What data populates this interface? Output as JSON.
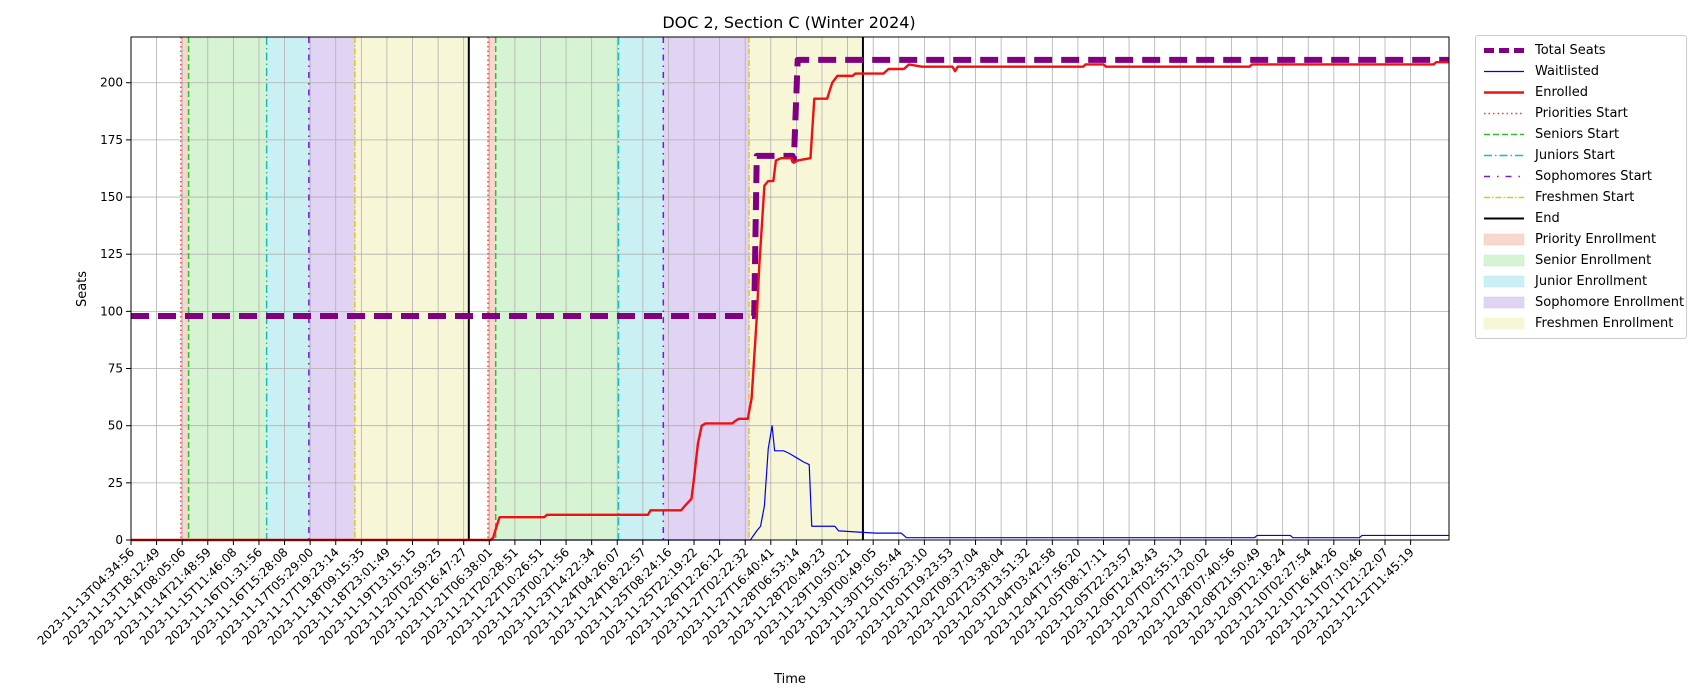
{
  "chart_data": {
    "type": "line",
    "title": "DOC 2, Section C (Winter 2024)",
    "xlabel": "Time",
    "ylabel": "Seats",
    "ylim": [
      0,
      220
    ],
    "y_ticks": [
      0,
      25,
      50,
      75,
      100,
      125,
      150,
      175,
      200
    ],
    "x_ticks": [
      "2023-11-13T04:34:56",
      "2023-11-13T18:12:49",
      "2023-11-14T08:05:06",
      "2023-11-14T21:48:59",
      "2023-11-15T11:46:08",
      "2023-11-16T01:31:56",
      "2023-11-16T15:28:08",
      "2023-11-17T05:29:00",
      "2023-11-17T19:23:14",
      "2023-11-18T09:15:35",
      "2023-11-18T23:01:49",
      "2023-11-19T13:15:15",
      "2023-11-20T02:59:25",
      "2023-11-20T16:47:27",
      "2023-11-21T06:38:01",
      "2023-11-21T20:28:51",
      "2023-11-22T10:26:51",
      "2023-11-23T00:21:56",
      "2023-11-23T14:22:34",
      "2023-11-24T04:26:07",
      "2023-11-24T18:22:57",
      "2023-11-25T08:24:16",
      "2023-11-25T22:19:22",
      "2023-11-26T12:26:12",
      "2023-11-27T02:22:32",
      "2023-11-27T16:40:41",
      "2023-11-28T06:53:14",
      "2023-11-28T20:49:23",
      "2023-11-29T10:50:21",
      "2023-11-30T00:49:05",
      "2023-11-30T15:05:44",
      "2023-12-01T05:23:10",
      "2023-12-01T19:23:53",
      "2023-12-02T09:37:04",
      "2023-12-02T23:38:04",
      "2023-12-03T13:51:32",
      "2023-12-04T03:42:58",
      "2023-12-04T17:56:20",
      "2023-12-05T08:17:11",
      "2023-12-05T22:23:57",
      "2023-12-06T12:43:43",
      "2023-12-07T02:55:13",
      "2023-12-07T17:20:02",
      "2023-12-08T07:40:56",
      "2023-12-08T21:50:49",
      "2023-12-09T12:18:24",
      "2023-12-10T02:27:54",
      "2023-12-10T16:44:26",
      "2023-12-11T07:10:46",
      "2023-12-11T21:22:07",
      "2023-12-12T11:45:19"
    ],
    "x_range": [
      0,
      51.5
    ],
    "grid": true,
    "legend_position": "outside-right",
    "regions": [
      {
        "name": "Priority Enrollment",
        "start": 1.95,
        "end": 2.25,
        "color": "#f4c8b6"
      },
      {
        "name": "Senior Enrollment",
        "start": 2.25,
        "end": 5.3,
        "color": "#c4efc0"
      },
      {
        "name": "Junior Enrollment",
        "start": 5.3,
        "end": 6.95,
        "color": "#b5e9ef"
      },
      {
        "name": "Sophomore Enrollment",
        "start": 6.95,
        "end": 8.75,
        "color": "#d4c1f0"
      },
      {
        "name": "Freshmen Enrollment",
        "start": 8.75,
        "end": 13.2,
        "color": "#f3f4c8"
      },
      {
        "name": "Priority Enrollment",
        "start": 13.95,
        "end": 14.25,
        "color": "#f4c8b6"
      },
      {
        "name": "Senior Enrollment",
        "start": 14.25,
        "end": 19.05,
        "color": "#c4efc0"
      },
      {
        "name": "Junior Enrollment",
        "start": 19.05,
        "end": 20.8,
        "color": "#b5e9ef"
      },
      {
        "name": "Sophomore Enrollment",
        "start": 20.8,
        "end": 24.15,
        "color": "#d4c1f0"
      },
      {
        "name": "Freshmen Enrollment",
        "start": 24.15,
        "end": 28.6,
        "color": "#f3f4c8"
      }
    ],
    "markers": [
      {
        "name": "Priorities Start",
        "x": 1.95,
        "color": "#ff3b3b",
        "dash": "1.5,3"
      },
      {
        "name": "Seniors Start",
        "x": 2.25,
        "color": "#2fc22f",
        "dash": "6,3"
      },
      {
        "name": "Juniors Start",
        "x": 5.3,
        "color": "#17bebe",
        "dash": "8,3,1.5,3"
      },
      {
        "name": "Sophomores Start",
        "x": 6.95,
        "color": "#7b16d6",
        "dash": "6,5,1.5,5"
      },
      {
        "name": "Freshmen Start",
        "x": 8.75,
        "color": "#e3c61b",
        "dash": "6,2,1.5,2"
      },
      {
        "name": "End",
        "x": 13.2,
        "color": "#000000",
        "dash": ""
      },
      {
        "name": "Priorities Start",
        "x": 13.95,
        "color": "#ff3b3b",
        "dash": "1.5,3"
      },
      {
        "name": "Seniors Start",
        "x": 14.25,
        "color": "#2fc22f",
        "dash": "6,3"
      },
      {
        "name": "Juniors Start",
        "x": 19.05,
        "color": "#17bebe",
        "dash": "8,3,1.5,3"
      },
      {
        "name": "Sophomores Start",
        "x": 20.8,
        "color": "#7b16d6",
        "dash": "6,5,1.5,5"
      },
      {
        "name": "Freshmen Start",
        "x": 24.15,
        "color": "#e3c61b",
        "dash": "6,2,1.5,2"
      },
      {
        "name": "End",
        "x": 28.6,
        "color": "#000000",
        "dash": ""
      }
    ],
    "series": [
      {
        "name": "Total Seats",
        "color": "#800080",
        "points": [
          [
            0,
            98
          ],
          [
            24.2,
            98
          ],
          [
            24.35,
            98
          ],
          [
            24.45,
            168
          ],
          [
            25.85,
            168
          ],
          [
            25.9,
            166
          ],
          [
            26.05,
            210
          ],
          [
            51.5,
            210
          ]
        ]
      },
      {
        "name": "Waitlisted",
        "color": "#0000ee",
        "points": [
          [
            0,
            0
          ],
          [
            24.2,
            0
          ],
          [
            24.45,
            4
          ],
          [
            24.6,
            6
          ],
          [
            24.75,
            15
          ],
          [
            24.9,
            40
          ],
          [
            25.05,
            50
          ],
          [
            25.15,
            39
          ],
          [
            25.5,
            39
          ],
          [
            25.7,
            38
          ],
          [
            25.85,
            37
          ],
          [
            26.0,
            36
          ],
          [
            26.3,
            34
          ],
          [
            26.5,
            33
          ],
          [
            26.6,
            6
          ],
          [
            27.5,
            6
          ],
          [
            27.65,
            4
          ],
          [
            29.1,
            3
          ],
          [
            30.1,
            3
          ],
          [
            30.2,
            2
          ],
          [
            30.3,
            1
          ],
          [
            43.9,
            1
          ],
          [
            44.0,
            2
          ],
          [
            45.3,
            2
          ],
          [
            45.4,
            1
          ],
          [
            48.0,
            1
          ],
          [
            48.1,
            2
          ],
          [
            51.5,
            2
          ]
        ]
      },
      {
        "name": "Enrolled",
        "color": "#ee1111",
        "points": [
          [
            0,
            0
          ],
          [
            14.05,
            0
          ],
          [
            14.15,
            1
          ],
          [
            14.4,
            10
          ],
          [
            16.15,
            10
          ],
          [
            16.25,
            11
          ],
          [
            20.2,
            11
          ],
          [
            20.3,
            13
          ],
          [
            21.5,
            13
          ],
          [
            21.65,
            15
          ],
          [
            21.9,
            18
          ],
          [
            22.0,
            27
          ],
          [
            22.15,
            42
          ],
          [
            22.3,
            50
          ],
          [
            22.45,
            51
          ],
          [
            23.5,
            51
          ],
          [
            23.6,
            52
          ],
          [
            23.75,
            53
          ],
          [
            24.1,
            53
          ],
          [
            24.25,
            62
          ],
          [
            24.45,
            97
          ],
          [
            24.55,
            120
          ],
          [
            24.75,
            155
          ],
          [
            24.9,
            157
          ],
          [
            25.1,
            157
          ],
          [
            25.2,
            166
          ],
          [
            25.4,
            167
          ],
          [
            25.8,
            167
          ],
          [
            25.9,
            165
          ],
          [
            26.05,
            166
          ],
          [
            26.55,
            167
          ],
          [
            26.7,
            193
          ],
          [
            27.2,
            193
          ],
          [
            27.4,
            200
          ],
          [
            27.6,
            203
          ],
          [
            28.2,
            203
          ],
          [
            28.3,
            204
          ],
          [
            29.4,
            204
          ],
          [
            29.6,
            206
          ],
          [
            30.2,
            206
          ],
          [
            30.4,
            208
          ],
          [
            30.9,
            207
          ],
          [
            32.1,
            207
          ],
          [
            32.2,
            205
          ],
          [
            32.3,
            207
          ],
          [
            37.2,
            207
          ],
          [
            37.3,
            208
          ],
          [
            38.0,
            208
          ],
          [
            38.1,
            207
          ],
          [
            43.7,
            207
          ],
          [
            43.8,
            208
          ],
          [
            50.9,
            208
          ],
          [
            51.0,
            209
          ],
          [
            51.5,
            209
          ]
        ]
      }
    ],
    "legend": [
      {
        "label": "Total Seats",
        "kind": "line",
        "color": "#800080",
        "width": 5,
        "dash": "10,5"
      },
      {
        "label": "Waitlisted",
        "kind": "line",
        "color": "#0000ee",
        "width": 1.3,
        "dash": ""
      },
      {
        "label": "Enrolled",
        "kind": "line",
        "color": "#ee1111",
        "width": 2.5,
        "dash": ""
      },
      {
        "label": "Priorities Start",
        "kind": "line",
        "color": "#ff3b3b",
        "width": 1.5,
        "dash": "1.5,3"
      },
      {
        "label": "Seniors Start",
        "kind": "line",
        "color": "#2fc22f",
        "width": 1.5,
        "dash": "6,3"
      },
      {
        "label": "Juniors Start",
        "kind": "line",
        "color": "#17bebe",
        "width": 1.5,
        "dash": "8,3,1.5,3"
      },
      {
        "label": "Sophomores Start",
        "kind": "line",
        "color": "#7b16d6",
        "width": 1.5,
        "dash": "6,7,1.5,7"
      },
      {
        "label": "Freshmen Start",
        "kind": "line",
        "color": "#e3c61b",
        "width": 1.5,
        "dash": "6,2,1.5,2"
      },
      {
        "label": "End",
        "kind": "line",
        "color": "#000000",
        "width": 2,
        "dash": ""
      },
      {
        "label": "Priority Enrollment",
        "kind": "patch",
        "color": "#f4c8b6"
      },
      {
        "label": "Senior Enrollment",
        "kind": "patch",
        "color": "#c4efc0"
      },
      {
        "label": "Junior Enrollment",
        "kind": "patch",
        "color": "#b5e9ef"
      },
      {
        "label": "Sophomore Enrollment",
        "kind": "patch",
        "color": "#d4c1f0"
      },
      {
        "label": "Freshmen Enrollment",
        "kind": "patch",
        "color": "#f3f4c8"
      }
    ]
  }
}
